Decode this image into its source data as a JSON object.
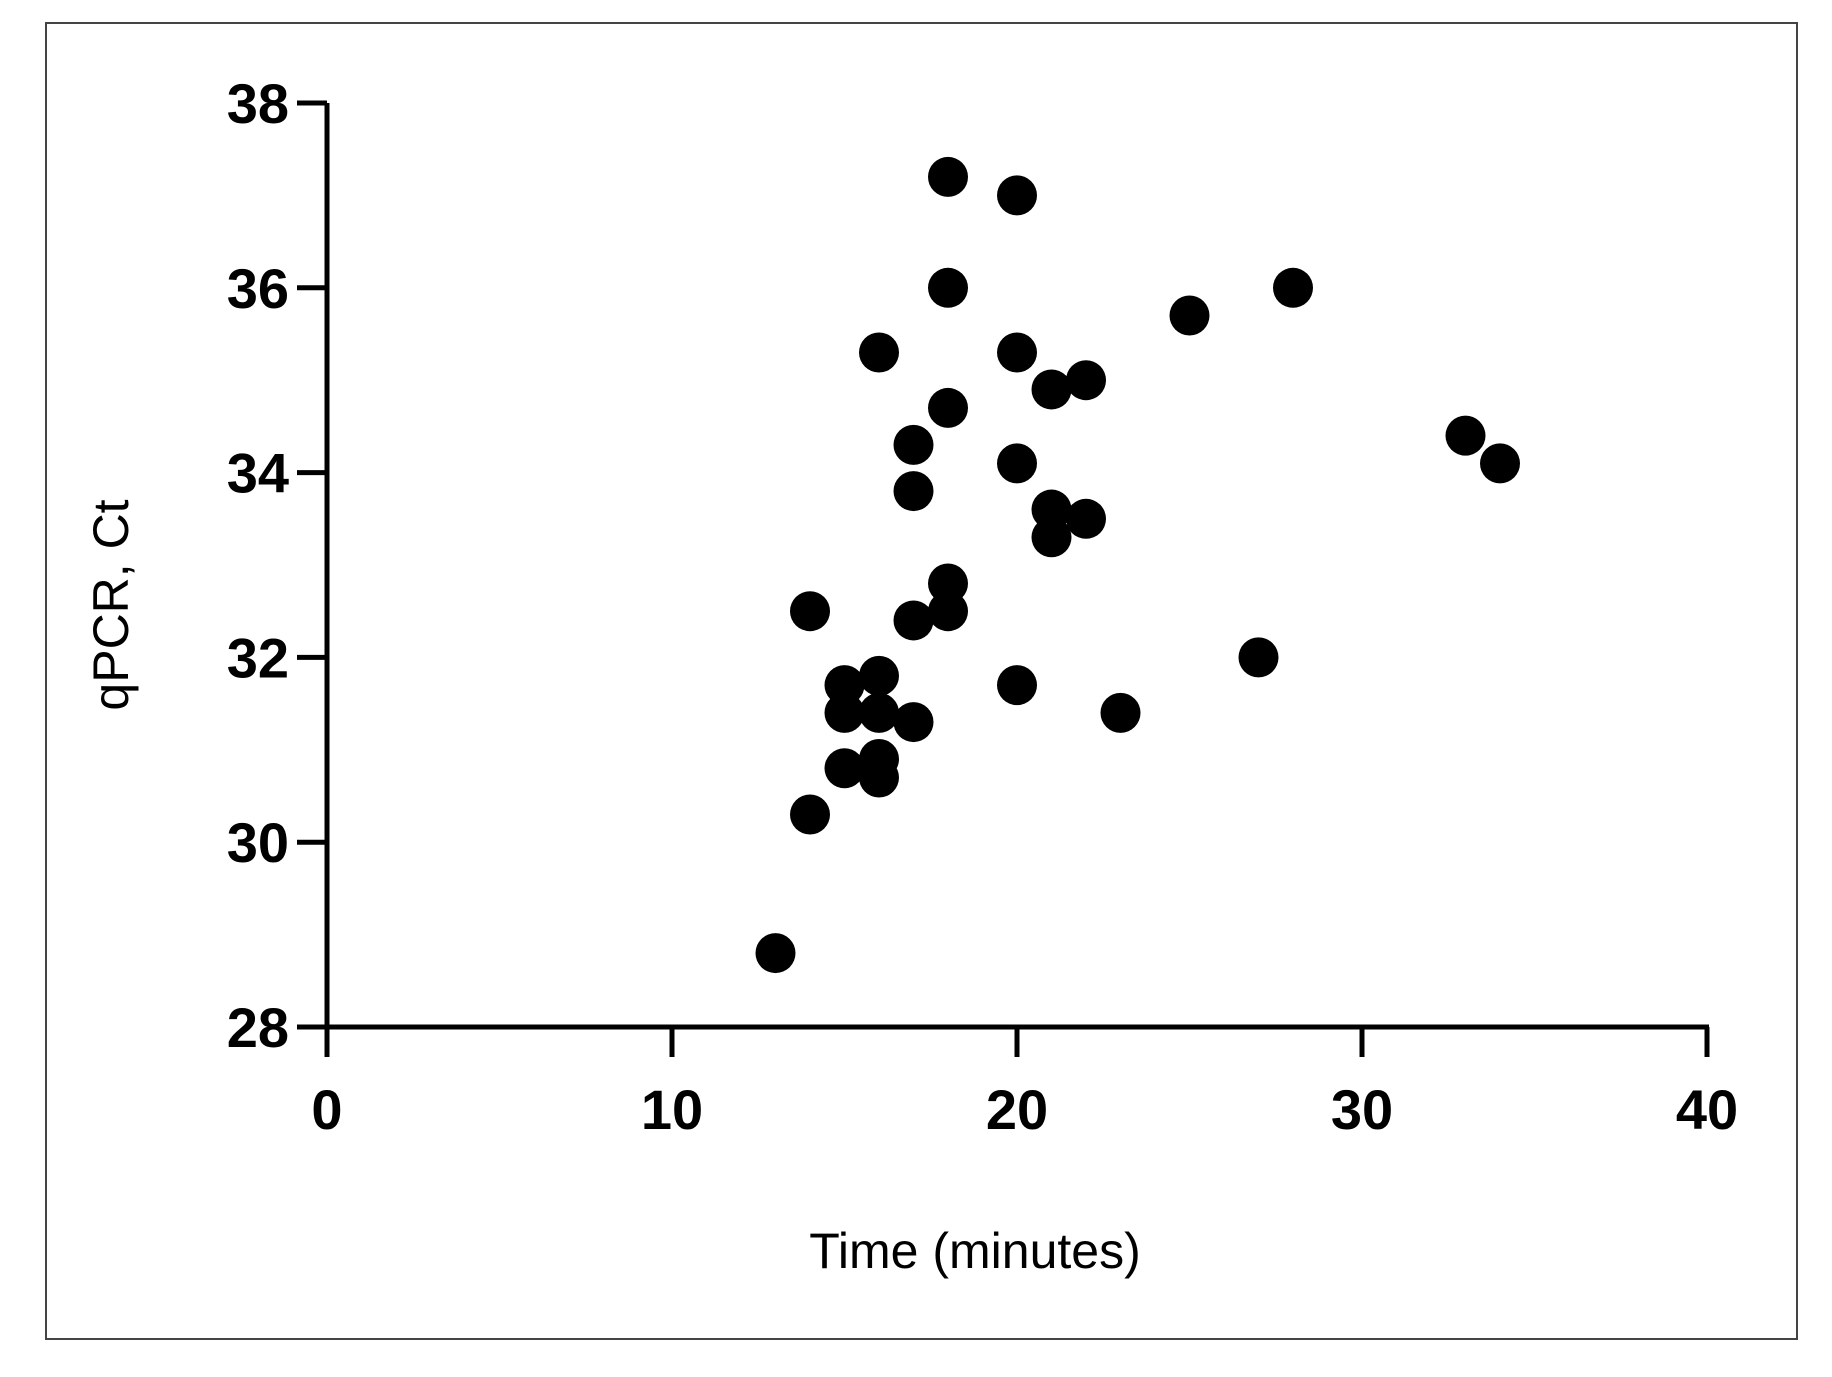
{
  "chart_data": {
    "type": "scatter",
    "xlabel": "Time (minutes)",
    "ylabel": "qPCR, Ct",
    "xlim": [
      0,
      40
    ],
    "ylim": [
      28,
      38
    ],
    "x_ticks": [
      0,
      10,
      20,
      30,
      40
    ],
    "y_ticks": [
      28,
      30,
      32,
      34,
      36,
      38
    ],
    "grid": false,
    "marker_color": "#000000",
    "series": [
      {
        "points": [
          {
            "x": 13,
            "y": 28.8
          },
          {
            "x": 14,
            "y": 30.3
          },
          {
            "x": 14,
            "y": 32.5
          },
          {
            "x": 15,
            "y": 30.8
          },
          {
            "x": 15,
            "y": 31.4
          },
          {
            "x": 15,
            "y": 31.7
          },
          {
            "x": 16,
            "y": 30.7
          },
          {
            "x": 16,
            "y": 30.9
          },
          {
            "x": 16,
            "y": 31.4
          },
          {
            "x": 16,
            "y": 31.8
          },
          {
            "x": 16,
            "y": 35.3
          },
          {
            "x": 17,
            "y": 31.3
          },
          {
            "x": 17,
            "y": 32.4
          },
          {
            "x": 17,
            "y": 33.8
          },
          {
            "x": 17,
            "y": 34.3
          },
          {
            "x": 18,
            "y": 32.5
          },
          {
            "x": 18,
            "y": 32.8
          },
          {
            "x": 18,
            "y": 34.7
          },
          {
            "x": 18,
            "y": 36.0
          },
          {
            "x": 18,
            "y": 37.2
          },
          {
            "x": 20,
            "y": 31.7
          },
          {
            "x": 20,
            "y": 34.1
          },
          {
            "x": 20,
            "y": 35.3
          },
          {
            "x": 20,
            "y": 37.0
          },
          {
            "x": 21,
            "y": 33.3
          },
          {
            "x": 21,
            "y": 33.6
          },
          {
            "x": 21,
            "y": 34.9
          },
          {
            "x": 22,
            "y": 33.5
          },
          {
            "x": 22,
            "y": 35.0
          },
          {
            "x": 23,
            "y": 31.4
          },
          {
            "x": 25,
            "y": 35.7
          },
          {
            "x": 27,
            "y": 32.0
          },
          {
            "x": 28,
            "y": 36.0
          },
          {
            "x": 33,
            "y": 34.4
          },
          {
            "x": 34,
            "y": 34.1
          }
        ]
      }
    ]
  }
}
